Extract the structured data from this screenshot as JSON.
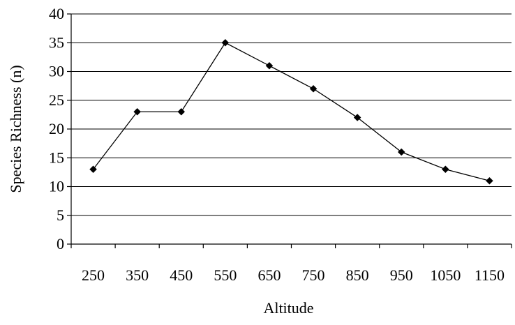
{
  "chart_data": {
    "type": "line",
    "xlabel": "Altitude",
    "ylabel": "Species Richness (n)",
    "categories": [
      "250",
      "350",
      "450",
      "550",
      "650",
      "750",
      "850",
      "950",
      "1050",
      "1150"
    ],
    "series": [
      {
        "values": [
          13,
          23,
          23,
          35,
          31,
          27,
          22,
          16,
          13,
          11
        ]
      }
    ],
    "ylim": [
      0,
      40
    ],
    "yticks": [
      0,
      5,
      10,
      15,
      20,
      25,
      30,
      35,
      40
    ],
    "grid": "horizontal",
    "marker": "diamond",
    "colors": {
      "line": "#000000",
      "grid": "#000000"
    }
  }
}
